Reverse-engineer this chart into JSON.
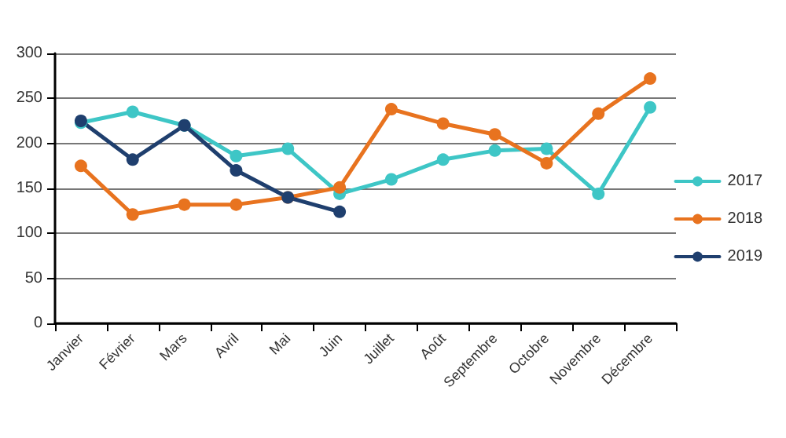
{
  "chart_data": {
    "type": "line",
    "categories": [
      "Janvier",
      "Février",
      "Mars",
      "Avril",
      "Mai",
      "Juin",
      "Juillet",
      "Août",
      "Septembre",
      "Octobre",
      "Novembre",
      "Décembre"
    ],
    "series": [
      {
        "name": "2017",
        "color": "#3ec6c6",
        "values": [
          223,
          235,
          220,
          186,
          194,
          144,
          160,
          182,
          192,
          194,
          144,
          240
        ]
      },
      {
        "name": "2018",
        "color": "#e8731f",
        "values": [
          175,
          121,
          132,
          132,
          140,
          151,
          238,
          222,
          210,
          178,
          233,
          272
        ]
      },
      {
        "name": "2019",
        "color": "#1f3f6e",
        "values": [
          225,
          182,
          220,
          170,
          140,
          124,
          null,
          null,
          null,
          null,
          null,
          null
        ]
      }
    ],
    "ylim": [
      0,
      300
    ],
    "yticks": [
      0,
      50,
      100,
      150,
      200,
      250,
      300
    ],
    "grid": "y",
    "legend": "right",
    "marker": "circle",
    "line_style": "solid"
  }
}
